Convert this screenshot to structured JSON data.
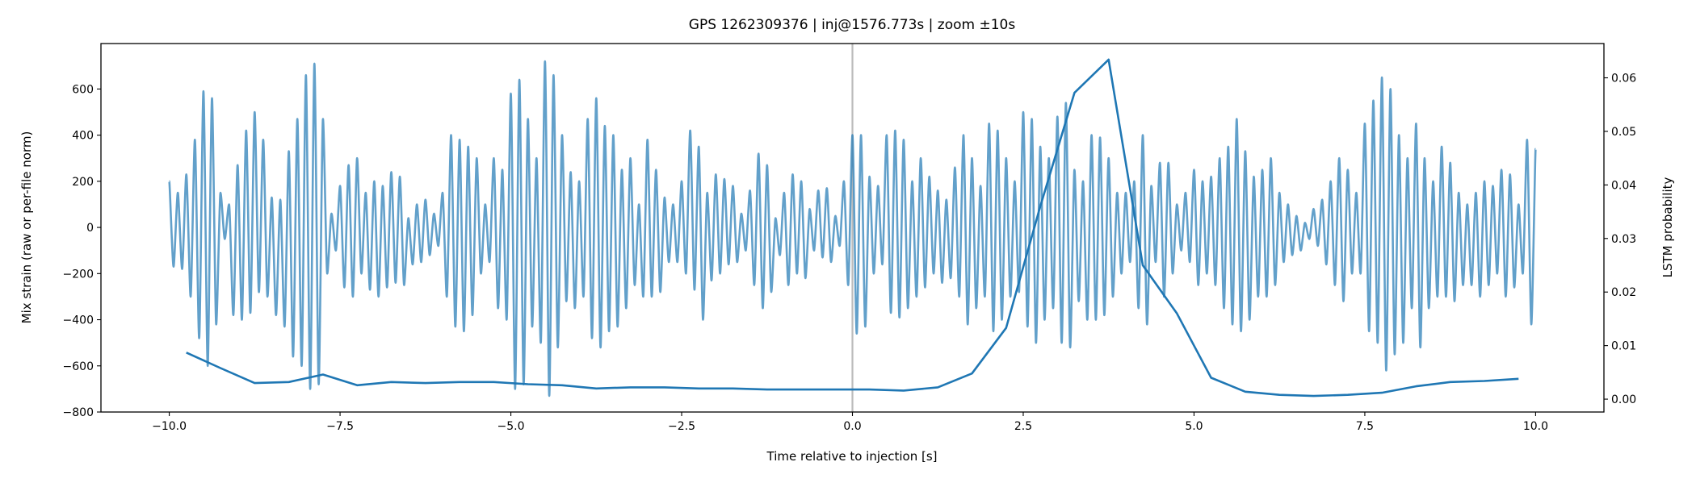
{
  "chart_data": {
    "type": "line",
    "title": "GPS 1262309376 | inj@1576.773s | zoom ±10s",
    "xlabel": "Time relative to injection [s]",
    "ylabel": "Mix strain (raw or per-file norm)",
    "ylabel_right": "LSTM probability",
    "xlim": [
      -11,
      11
    ],
    "ylim": [
      -800,
      797
    ],
    "ylim_right": [
      -0.0024,
      0.0664
    ],
    "grid": false,
    "x_ticks": [
      "−10.0",
      "−7.5",
      "−5.0",
      "−2.5",
      "0.0",
      "2.5",
      "5.0",
      "7.5",
      "10.0"
    ],
    "x_tick_values": [
      -10,
      -7.5,
      -5,
      -2.5,
      0,
      2.5,
      5,
      7.5,
      10
    ],
    "y_ticks": [
      "−800",
      "−600",
      "−400",
      "−200",
      "0",
      "200",
      "400",
      "600"
    ],
    "y_tick_values": [
      -800,
      -600,
      -400,
      -200,
      0,
      200,
      400,
      600
    ],
    "y_ticks_right": [
      "0.00",
      "0.01",
      "0.02",
      "0.03",
      "0.04",
      "0.05",
      "0.06"
    ],
    "y_tick_values_right": [
      0,
      0.01,
      0.02,
      0.03,
      0.04,
      0.05,
      0.06
    ],
    "injection_marker_x": 0,
    "colors": {
      "strain": "#1f77b4",
      "probability": "#1f77b4",
      "marker": "#aaaaaa"
    },
    "strain": {
      "axis": "left",
      "x_range": [
        -10,
        10
      ],
      "values": [
        200,
        -170,
        150,
        -180,
        230,
        -300,
        380,
        -480,
        590,
        -600,
        560,
        -420,
        150,
        -50,
        100,
        -380,
        270,
        -400,
        420,
        -370,
        500,
        -280,
        380,
        -300,
        130,
        -380,
        120,
        -430,
        330,
        -560,
        470,
        -600,
        660,
        -700,
        710,
        -680,
        470,
        -200,
        60,
        -100,
        180,
        -260,
        270,
        -300,
        300,
        -200,
        150,
        -270,
        200,
        -300,
        180,
        -260,
        240,
        -240,
        220,
        -250,
        40,
        -160,
        100,
        -150,
        120,
        -120,
        60,
        -80,
        150,
        -300,
        400,
        -430,
        380,
        -450,
        350,
        -380,
        300,
        -200,
        100,
        -150,
        300,
        -350,
        250,
        -400,
        580,
        -700,
        640,
        -680,
        470,
        -430,
        300,
        -500,
        720,
        -730,
        660,
        -520,
        400,
        -320,
        240,
        -350,
        200,
        -300,
        470,
        -480,
        560,
        -520,
        440,
        -450,
        400,
        -430,
        250,
        -350,
        300,
        -250,
        100,
        -300,
        380,
        -300,
        250,
        -280,
        130,
        -150,
        100,
        -150,
        200,
        -200,
        420,
        -270,
        350,
        -400,
        150,
        -230,
        230,
        -200,
        210,
        -160,
        180,
        -150,
        60,
        -100,
        160,
        -250,
        320,
        -350,
        270,
        -280,
        40,
        -120,
        150,
        -250,
        230,
        -200,
        200,
        -220,
        80,
        -100,
        160,
        -130,
        170,
        -150,
        50,
        -80,
        200,
        -250,
        400,
        -460,
        400,
        -430,
        220,
        -200,
        180,
        -160,
        400,
        -370,
        420,
        -390,
        380,
        -350,
        200,
        -300,
        300,
        -260,
        220,
        -200,
        160,
        -240,
        120,
        -220,
        260,
        -300,
        400,
        -420,
        300,
        -350,
        180,
        -300,
        450,
        -450,
        420,
        -400,
        300,
        -300,
        200,
        -280,
        500,
        -430,
        470,
        -500,
        350,
        -400,
        300,
        -350,
        480,
        -500,
        540,
        -520,
        250,
        -320,
        200,
        -400,
        400,
        -400,
        390,
        -380,
        300,
        -300,
        150,
        -200,
        150,
        -150,
        200,
        -350,
        400,
        -420,
        180,
        -150,
        280,
        -300,
        280,
        -200,
        100,
        -100,
        150,
        -150,
        250,
        -250,
        200,
        -200,
        220,
        -250,
        300,
        -350,
        350,
        -420,
        470,
        -450,
        330,
        -400,
        220,
        -300,
        250,
        -300,
        300,
        -250,
        150,
        -150,
        100,
        -120,
        50,
        -100,
        20,
        -50,
        80,
        -80,
        120,
        -160,
        200,
        -250,
        300,
        -320,
        250,
        -200,
        150,
        -200,
        450,
        -450,
        550,
        -500,
        650,
        -620,
        600,
        -550,
        400,
        -500,
        300,
        -350,
        450,
        -520,
        300,
        -350,
        200,
        -300,
        350,
        -300,
        280,
        -320,
        150,
        -250,
        100,
        -250,
        150,
        -300,
        200,
        -250,
        180,
        -200,
        250,
        -300,
        230,
        -260,
        100,
        -200,
        380,
        -420,
        340
      ]
    },
    "probability": {
      "axis": "right",
      "x": [
        -9.75,
        -9.25,
        -8.75,
        -8.25,
        -7.75,
        -7.25,
        -6.75,
        -6.25,
        -5.75,
        -5.25,
        -4.75,
        -4.25,
        -3.75,
        -3.25,
        -2.75,
        -2.25,
        -1.75,
        -1.25,
        -0.75,
        -0.25,
        0.25,
        0.75,
        1.25,
        1.75,
        2.25,
        2.75,
        3.25,
        3.75,
        4.25,
        4.75,
        5.25,
        5.75,
        6.25,
        6.75,
        7.25,
        7.75,
        8.25,
        8.75,
        9.25,
        9.75
      ],
      "y": [
        0.0087,
        0.0058,
        0.003,
        0.0032,
        0.0046,
        0.0026,
        0.0032,
        0.003,
        0.0032,
        0.0032,
        0.0028,
        0.0026,
        0.002,
        0.0022,
        0.0022,
        0.002,
        0.002,
        0.0018,
        0.0018,
        0.0018,
        0.0018,
        0.0016,
        0.0022,
        0.0048,
        0.0133,
        0.036,
        0.0572,
        0.0634,
        0.025,
        0.016,
        0.004,
        0.0014,
        0.0008,
        0.0006,
        0.0008,
        0.0012,
        0.0024,
        0.0032,
        0.0034,
        0.0038
      ]
    }
  }
}
